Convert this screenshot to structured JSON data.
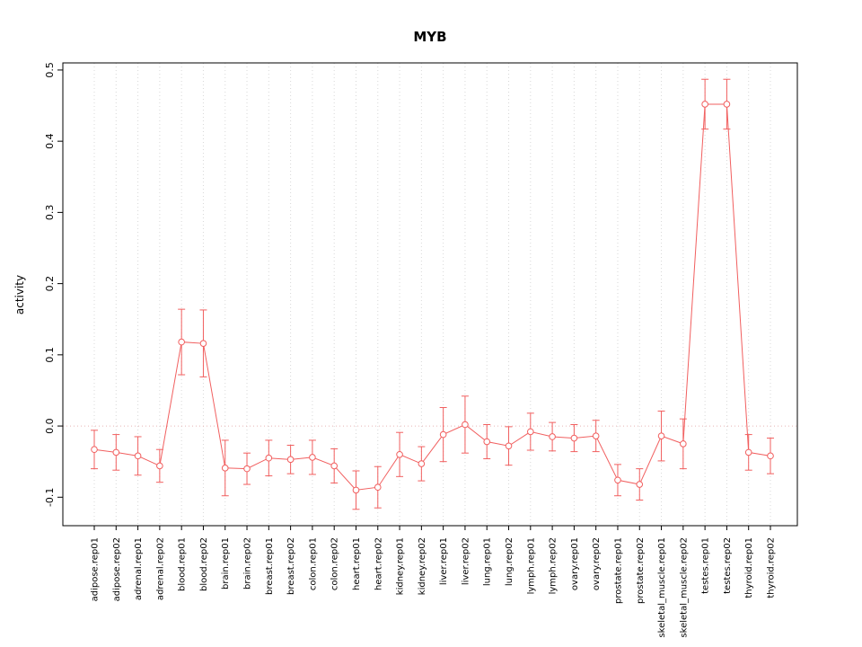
{
  "chart_data": {
    "type": "line",
    "title": "MYB",
    "xlabel": "",
    "ylabel": "activity",
    "ylim": [
      -0.14,
      0.51
    ],
    "yticks": [
      -0.1,
      0.0,
      0.1,
      0.2,
      0.3,
      0.4,
      0.5
    ],
    "grid": "vertical-dotted",
    "zero_line": true,
    "legend": "none",
    "point_style": "open-circle-with-error-bars",
    "point_color": "#f15f5f",
    "grid_color": "#d8d8d8",
    "zero_line_color": "#e8b4b4",
    "frame_color": "#000000",
    "categories": [
      "adipose.rep01",
      "adipose.rep02",
      "adrenal.rep01",
      "adrenal.rep02",
      "blood.rep01",
      "blood.rep02",
      "brain.rep01",
      "brain.rep02",
      "breast.rep01",
      "breast.rep02",
      "colon.rep01",
      "colon.rep02",
      "heart.rep01",
      "heart.rep02",
      "kidney.rep01",
      "kidney.rep02",
      "liver.rep01",
      "liver.rep02",
      "lung.rep01",
      "lung.rep02",
      "lymph.rep01",
      "lymph.rep02",
      "ovary.rep01",
      "ovary.rep02",
      "prostate.rep01",
      "prostate.rep02",
      "skeletal_muscle.rep01",
      "skeletal_muscle.rep02",
      "testes.rep01",
      "testes.rep02",
      "thyroid.rep01",
      "thyroid.rep02"
    ],
    "values": [
      -0.033,
      -0.037,
      -0.042,
      -0.056,
      0.118,
      0.116,
      -0.059,
      -0.06,
      -0.045,
      -0.047,
      -0.044,
      -0.056,
      -0.09,
      -0.086,
      -0.04,
      -0.053,
      -0.012,
      0.002,
      -0.022,
      -0.028,
      -0.008,
      -0.015,
      -0.017,
      -0.014,
      -0.076,
      -0.082,
      -0.014,
      -0.025,
      0.452,
      0.452,
      -0.037,
      -0.042
    ],
    "errors": [
      0.027,
      0.025,
      0.027,
      0.023,
      0.046,
      0.047,
      0.039,
      0.022,
      0.025,
      0.02,
      0.024,
      0.024,
      0.027,
      0.029,
      0.031,
      0.024,
      0.038,
      0.04,
      0.024,
      0.027,
      0.026,
      0.02,
      0.019,
      0.022,
      0.022,
      0.022,
      0.035,
      0.035,
      0.035,
      0.035,
      0.025,
      0.025
    ]
  }
}
